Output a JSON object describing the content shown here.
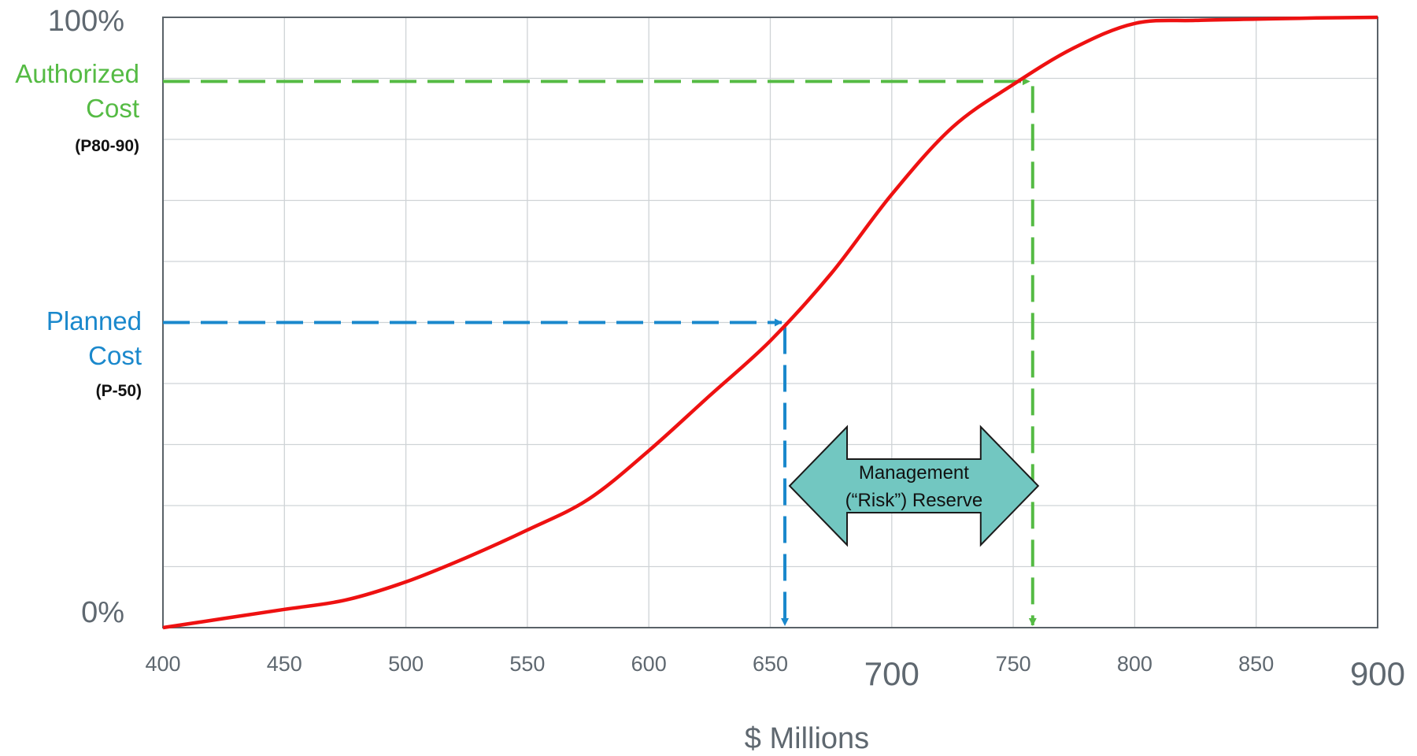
{
  "chart_data": {
    "type": "line",
    "title": "",
    "xlabel": "$ Millions",
    "ylabel": "",
    "xlim": [
      400,
      900
    ],
    "ylim": [
      0,
      100
    ],
    "x_ticks": [
      "400",
      "450",
      "500",
      "550",
      "600",
      "650",
      "700",
      "750",
      "800",
      "850",
      "900"
    ],
    "y_tick_labels": {
      "top": "100%",
      "bottom": "0%"
    },
    "grid": true,
    "series": [
      {
        "color": "#ee1111",
        "x": [
          400,
          425,
          450,
          475,
          500,
          525,
          550,
          575,
          600,
          625,
          650,
          675,
          700,
          725,
          750,
          775,
          800,
          825,
          850,
          875,
          900
        ],
        "y": [
          0,
          1.5,
          3,
          4.5,
          7.5,
          11.5,
          16,
          21,
          29,
          38,
          47,
          58,
          71,
          82,
          89,
          95,
          99,
          99.5,
          99.7,
          99.9,
          100
        ]
      }
    ],
    "markers": {
      "planned": {
        "label_line1": "Planned",
        "label_line2": "Cost",
        "sub": "(P-50)",
        "x": 656,
        "y": 50,
        "color": "#1a88cc"
      },
      "authorized": {
        "label_line1": "Authorized",
        "label_line2": "Cost",
        "sub": "(P80-90)",
        "x": 758,
        "y": 89.5,
        "color": "#55bb44"
      }
    },
    "annotation": {
      "line1": "Management",
      "line2": "(“Risk”) Reserve",
      "fill": "#72c7c1"
    }
  }
}
